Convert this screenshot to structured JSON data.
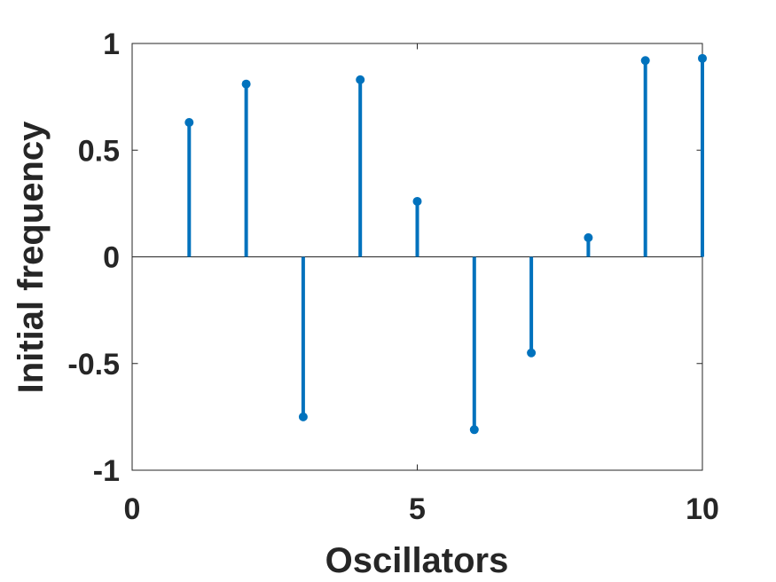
{
  "chart_data": {
    "type": "stem",
    "title": "",
    "xlabel": "Oscillators",
    "ylabel": "Initial frequency",
    "xlim": [
      0,
      10
    ],
    "ylim": [
      -1,
      1
    ],
    "xticks": [
      "0",
      "5",
      "10"
    ],
    "yticks": [
      "1",
      "0.5",
      "0",
      "-0.5",
      "-1"
    ],
    "grid": false,
    "series": [
      {
        "color": "#0072BD",
        "points": [
          {
            "x": 1,
            "y": 0.63
          },
          {
            "x": 2,
            "y": 0.81
          },
          {
            "x": 3,
            "y": -0.75
          },
          {
            "x": 4,
            "y": 0.83
          },
          {
            "x": 5,
            "y": 0.26
          },
          {
            "x": 6,
            "y": -0.81
          },
          {
            "x": 7,
            "y": -0.45
          },
          {
            "x": 8,
            "y": 0.09
          },
          {
            "x": 9,
            "y": 0.92
          },
          {
            "x": 10,
            "y": 0.93
          }
        ]
      }
    ]
  }
}
